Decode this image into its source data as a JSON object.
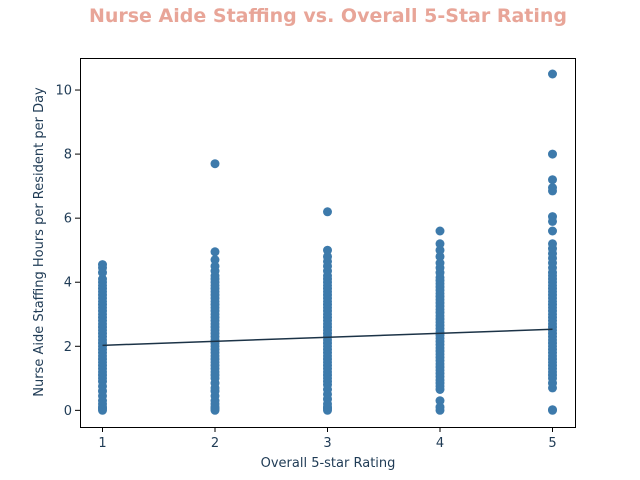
{
  "chart_data": {
    "type": "scatter",
    "title": "Nurse Aide Staffing vs. Overall 5-Star Rating",
    "xlabel": "Overall 5-star Rating",
    "ylabel": "Nurse Aide Staffing Hours per Resident per Day",
    "xlim": [
      0.8,
      5.2
    ],
    "ylim": [
      -0.52,
      11.0
    ],
    "xticks": [
      1,
      2,
      3,
      4,
      5
    ],
    "yticks": [
      0,
      2,
      4,
      6,
      8,
      10
    ],
    "grid": false,
    "colors": {
      "title": "#e8a598",
      "points": "#3d7aab",
      "trend": "#1c3347",
      "text": "#1f3b55"
    },
    "series": [
      {
        "x": 1,
        "y": [
          0,
          0.05,
          0.1,
          0.2,
          0.3,
          0.45,
          0.6,
          0.75,
          0.9,
          1.0,
          1.1,
          1.2,
          1.3,
          1.4,
          1.5,
          1.6,
          1.7,
          1.8,
          1.9,
          2.0,
          2.1,
          2.2,
          2.3,
          2.4,
          2.5,
          2.6,
          2.7,
          2.8,
          2.9,
          3.0,
          3.1,
          3.2,
          3.3,
          3.4,
          3.5,
          3.6,
          3.7,
          3.8,
          3.9,
          4.0,
          4.1,
          4.3,
          4.45,
          4.55
        ]
      },
      {
        "x": 2,
        "y": [
          0,
          0.05,
          0.1,
          0.2,
          0.3,
          0.45,
          0.6,
          0.7,
          0.85,
          1.0,
          1.1,
          1.2,
          1.3,
          1.4,
          1.5,
          1.6,
          1.7,
          1.8,
          1.9,
          2.0,
          2.1,
          2.2,
          2.3,
          2.4,
          2.5,
          2.6,
          2.7,
          2.8,
          2.9,
          3.0,
          3.1,
          3.2,
          3.3,
          3.4,
          3.5,
          3.6,
          3.7,
          3.8,
          3.9,
          4.0,
          4.1,
          4.2,
          4.35,
          4.5,
          4.7,
          4.95,
          7.7
        ]
      },
      {
        "x": 3,
        "y": [
          0,
          0.05,
          0.1,
          0.2,
          0.35,
          0.5,
          0.65,
          0.8,
          0.9,
          1.0,
          1.1,
          1.2,
          1.3,
          1.4,
          1.5,
          1.6,
          1.7,
          1.8,
          1.9,
          2.0,
          2.1,
          2.2,
          2.3,
          2.4,
          2.5,
          2.6,
          2.7,
          2.8,
          2.9,
          3.0,
          3.1,
          3.2,
          3.3,
          3.4,
          3.5,
          3.6,
          3.7,
          3.8,
          3.9,
          4.0,
          4.1,
          4.2,
          4.35,
          4.5,
          4.65,
          4.8,
          5.0,
          6.2
        ]
      },
      {
        "x": 4,
        "y": [
          0,
          0.1,
          0.3,
          0.65,
          0.75,
          0.85,
          0.95,
          1.05,
          1.15,
          1.25,
          1.35,
          1.45,
          1.55,
          1.65,
          1.75,
          1.85,
          1.95,
          2.05,
          2.15,
          2.25,
          2.35,
          2.45,
          2.55,
          2.65,
          2.75,
          2.85,
          2.95,
          3.05,
          3.15,
          3.25,
          3.35,
          3.45,
          3.55,
          3.65,
          3.75,
          3.85,
          3.95,
          4.05,
          4.15,
          4.3,
          4.45,
          4.6,
          4.8,
          5.0,
          5.2,
          5.6
        ]
      },
      {
        "x": 5,
        "y": [
          0,
          0.02,
          0.7,
          0.85,
          1.0,
          1.1,
          1.2,
          1.3,
          1.4,
          1.5,
          1.6,
          1.7,
          1.8,
          1.9,
          2.0,
          2.1,
          2.2,
          2.3,
          2.4,
          2.5,
          2.6,
          2.7,
          2.8,
          2.9,
          3.0,
          3.1,
          3.2,
          3.3,
          3.4,
          3.5,
          3.6,
          3.7,
          3.8,
          3.9,
          4.0,
          4.1,
          4.2,
          4.3,
          4.45,
          4.6,
          4.75,
          4.9,
          5.05,
          5.2,
          5.6,
          5.9,
          6.05,
          6.85,
          6.95,
          7.2,
          8.0,
          10.5
        ]
      }
    ],
    "trendline": {
      "x": [
        1,
        5
      ],
      "y": [
        2.03,
        2.53
      ]
    }
  }
}
